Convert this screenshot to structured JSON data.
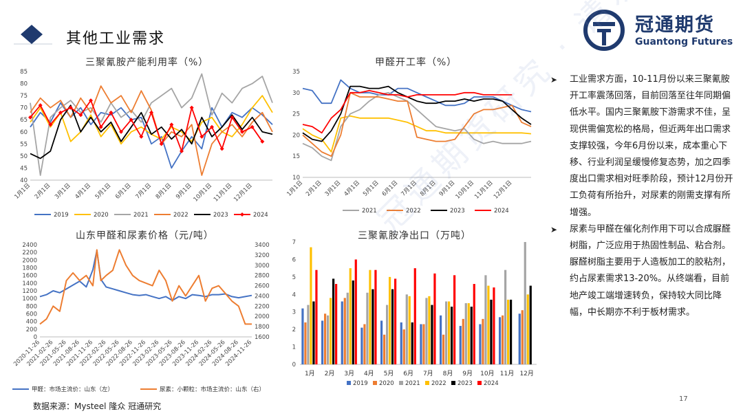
{
  "header": {
    "title": "其他工业需求",
    "logo_cn": "冠通期货",
    "logo_en": "Guantong Futures"
  },
  "colors": {
    "s2019": "#4472c4",
    "s2020": "#ffc000",
    "s2021": "#a5a5a5",
    "s2022": "#ed7d31",
    "s2023": "#000000",
    "s2024": "#ff0000",
    "logo": "#1f3a6e",
    "diamond": "#1f3a6e"
  },
  "watermark": "冠通期货研究 · 请勿",
  "text_block": {
    "p1": "工业需求方面，10-11月份以来三聚氰胺开工率震荡回落，目前回落至往年同期偏低水平。国内三聚氰胺下游需求不佳，呈现供需偏宽松的格局，但近两年出口需求支撑较强，今年6月份以来，成本重心下移、行业利润呈缓慢修复态势，加之四季度出口需求相对旺季阶段，预计12月份开工负荷有所抬升，对尿素的刚需支撑有所增强。",
    "p2": "尿素与甲醛在催化剂作用下可以合成脲醛树脂，广泛应用于热固性制品、粘合剂。脲醛树脂主要用于人造板加工的胶粘剂，约占尿素需求13-20%。从终端看，目前地产竣工端增速转负，保持较大同比降幅，中长期亦不利于板材需求。"
  },
  "footer": {
    "source": "数据来源：Mysteel 隆众 冠通研究",
    "page": "17"
  },
  "chart_data": [
    {
      "type": "line",
      "title": "三聚氰胺产能利用率（%）",
      "x_ticks": [
        "1月1日",
        "2月1日",
        "3月1日",
        "4月1日",
        "5月1日",
        "6月1日",
        "7月1日",
        "8月1日",
        "9月1日",
        "10月1日",
        "11月1日",
        "12月1日"
      ],
      "x_range": [
        0,
        12
      ],
      "ylim": [
        40,
        85
      ],
      "yticks": [
        40,
        45,
        50,
        55,
        60,
        65,
        70,
        75,
        80,
        85
      ],
      "series": [
        {
          "name": "2019",
          "color": "#4472c4",
          "x": [
            0,
            0.5,
            1,
            1.5,
            2,
            2.5,
            3,
            3.5,
            4,
            4.5,
            5,
            5.5,
            6,
            6.5,
            7,
            7.5,
            8,
            8.5,
            9,
            9.5,
            10,
            10.5,
            11,
            11.5,
            12
          ],
          "values": [
            62,
            68,
            64,
            72,
            66,
            70,
            63,
            68,
            67,
            70,
            65,
            66,
            55,
            58,
            45,
            52,
            58,
            53,
            70,
            62,
            68,
            66,
            70,
            67,
            63
          ]
        },
        {
          "name": "2020",
          "color": "#ffc000",
          "x": [
            0,
            0.5,
            1,
            1.5,
            2,
            2.5,
            3,
            3.5,
            4,
            4.5,
            5,
            5.5,
            6,
            6.5,
            7,
            7.5,
            8,
            8.5,
            9,
            9.5,
            10,
            10.5,
            11,
            11.5,
            12
          ],
          "values": [
            64,
            70,
            62,
            68,
            56,
            60,
            67,
            58,
            63,
            55,
            60,
            62,
            59,
            57,
            62,
            60,
            56,
            64,
            66,
            60,
            58,
            63,
            70,
            75,
            68
          ]
        },
        {
          "name": "2021",
          "color": "#a5a5a5",
          "x": [
            0,
            0.5,
            1,
            1.5,
            2,
            2.5,
            3,
            3.5,
            4,
            4.5,
            5,
            5.5,
            6,
            6.5,
            7,
            7.5,
            8,
            8.5,
            9,
            9.5,
            10,
            10.5,
            11,
            11.5,
            12
          ],
          "values": [
            72,
            42,
            66,
            70,
            73,
            68,
            70,
            64,
            72,
            66,
            69,
            64,
            72,
            75,
            78,
            70,
            74,
            84,
            67,
            76,
            72,
            78,
            80,
            83,
            72
          ]
        },
        {
          "name": "2022",
          "color": "#ed7d31",
          "x": [
            0,
            0.5,
            1,
            1.5,
            2,
            2.5,
            3,
            3.5,
            4,
            4.5,
            5,
            5.5,
            6,
            6.5,
            7,
            7.5,
            8,
            8.5,
            9,
            9.5,
            10,
            10.5,
            11,
            11.5,
            12
          ],
          "values": [
            68,
            74,
            70,
            73,
            66,
            74,
            68,
            79,
            72,
            75,
            68,
            77,
            69,
            55,
            60,
            58,
            63,
            42,
            55,
            60,
            63,
            58,
            64,
            68,
            60
          ]
        },
        {
          "name": "2023",
          "color": "#000000",
          "x": [
            0,
            0.5,
            1,
            1.5,
            2,
            2.5,
            3,
            3.5,
            4,
            4.5,
            5,
            5.5,
            6,
            6.5,
            7,
            7.5,
            8,
            8.5,
            9,
            9.5,
            10,
            10.5,
            11,
            11.5,
            12
          ],
          "values": [
            51,
            49,
            52,
            65,
            71,
            60,
            66,
            60,
            64,
            56,
            62,
            68,
            59,
            62,
            57,
            61,
            55,
            66,
            58,
            62,
            67,
            61,
            66,
            60,
            59
          ]
        },
        {
          "name": "2024",
          "color": "#ff0000",
          "marker": true,
          "x": [
            0,
            0.5,
            1,
            1.5,
            2,
            2.5,
            3,
            3.5,
            4,
            4.5,
            5,
            5.5,
            6,
            6.5,
            7,
            7.5,
            8,
            8.5,
            9,
            9.5,
            10,
            10.5,
            11,
            11.5
          ],
          "values": [
            66,
            71,
            63,
            68,
            70,
            67,
            73,
            62,
            68,
            60,
            65,
            58,
            68,
            55,
            63,
            52,
            70,
            58,
            62,
            53,
            66,
            60,
            62,
            56
          ]
        }
      ]
    },
    {
      "type": "line",
      "title": "甲醛开工率（%）",
      "x_ticks": [
        "1月1日",
        "2月1日",
        "3月1日",
        "4月1日",
        "5月1日",
        "6月1日",
        "7月1日",
        "8月1日",
        "9月1日",
        "10月1日",
        "11月1日",
        "12月1日"
      ],
      "x_range": [
        0,
        12
      ],
      "ylim": [
        10,
        35
      ],
      "yticks": [
        10,
        15,
        20,
        25,
        30,
        35
      ],
      "series": [
        {
          "name": "2019",
          "color": "#4472c4",
          "x": [
            0,
            0.5,
            1,
            1.5,
            2,
            2.5,
            3,
            3.5,
            4,
            4.5,
            5,
            5.5,
            6,
            6.5,
            7,
            7.5,
            8,
            8.5,
            9,
            9.5,
            10,
            10.5,
            11,
            11.5,
            12
          ],
          "values": [
            31,
            30.5,
            27.5,
            27.5,
            33,
            31,
            30,
            30,
            29.5,
            29.5,
            31,
            31,
            30,
            29,
            28,
            27,
            27,
            27.5,
            29,
            29,
            29,
            28,
            27,
            26,
            25.5
          ]
        },
        {
          "name": "2020",
          "color": "#ffc000",
          "x": [
            0,
            0.5,
            1,
            1.5,
            2,
            2.5,
            3,
            3.5,
            4,
            4.5,
            5,
            5.5,
            6,
            6.5,
            7,
            7.5,
            8,
            8.5,
            9,
            9.5,
            10,
            10.5,
            11,
            11.5,
            12
          ],
          "values": [
            21.5,
            20,
            19,
            16,
            24,
            24.5,
            24,
            24,
            24,
            24,
            23.5,
            23,
            22,
            21,
            21,
            20.5,
            20.5,
            20.5,
            20.5,
            20.5,
            20.5,
            20.5,
            20.5,
            20.5,
            20.3
          ]
        },
        {
          "name": "2021",
          "color": "#a5a5a5",
          "x": [
            0,
            0.5,
            1,
            1.5,
            2,
            2.5,
            3,
            3.5,
            4,
            4.5,
            5,
            5.5,
            6,
            6.5,
            7,
            7.5,
            8,
            8.5,
            9,
            9.5,
            10,
            10.5,
            11,
            11.5,
            12
          ],
          "values": [
            18,
            17,
            15,
            14,
            22,
            25,
            26,
            28,
            29.5,
            30,
            29,
            28,
            26,
            24,
            22,
            21.5,
            21,
            21.5,
            19,
            18,
            18.5,
            18,
            18,
            18,
            18.5
          ]
        },
        {
          "name": "2022",
          "color": "#ed7d31",
          "x": [
            0,
            0.5,
            1,
            1.5,
            2,
            2.5,
            3,
            3.5,
            4,
            4.5,
            5,
            5.5,
            6,
            6.5,
            7,
            7.5,
            8,
            8.5,
            9,
            9.5,
            10,
            10.5,
            11,
            11.5,
            12
          ],
          "values": [
            20,
            18,
            16,
            15,
            20,
            30,
            29,
            29,
            29,
            28.5,
            28,
            28,
            19.5,
            19,
            18.5,
            18.5,
            19,
            22,
            25,
            26,
            26,
            26.5,
            27,
            23,
            22
          ]
        },
        {
          "name": "2023",
          "color": "#000000",
          "x": [
            0,
            0.5,
            1,
            1.5,
            2,
            2.5,
            3,
            3.5,
            4,
            4.5,
            5,
            5.5,
            6,
            6.5,
            7,
            7.5,
            8,
            8.5,
            9,
            9.5,
            10,
            10.5,
            11,
            11.5,
            12
          ],
          "values": [
            20.5,
            19,
            18.5,
            21,
            25,
            31.5,
            31.5,
            31,
            31,
            31.5,
            30,
            29,
            28,
            27.5,
            27.5,
            28,
            28,
            28.5,
            28,
            28.5,
            28.5,
            28,
            26,
            24,
            22.5
          ]
        },
        {
          "name": "2024",
          "color": "#ff0000",
          "x": [
            0,
            0.5,
            1,
            1.5,
            2,
            2.5,
            3,
            3.5,
            4,
            4.5,
            5,
            5.5,
            6,
            6.5,
            7,
            7.5,
            8,
            8.5,
            9,
            9.5,
            10,
            10.5,
            11
          ],
          "values": [
            22.5,
            22,
            20.5,
            24,
            26,
            30,
            30,
            30.5,
            30,
            29.5,
            29.5,
            29,
            29.5,
            29.5,
            29.5,
            29.5,
            29.5,
            30,
            30,
            29.5,
            29.5,
            29.5,
            29.5
          ]
        }
      ]
    },
    {
      "type": "line",
      "title": "山东甲醛和尿素价格（元/吨）",
      "x_ticks": [
        "2020-11-26",
        "2021-02-26",
        "2021-05-26",
        "2021-08-26",
        "2021-11-26",
        "2022-02-26",
        "2022-05-26",
        "2022-08-26",
        "2022-11-26",
        "2023-02-26",
        "2023-05-26",
        "2023-08-26",
        "2023-11-26",
        "2024-02-26",
        "2024-05-26",
        "2024-08-26",
        "2024-11-26"
      ],
      "x_range": [
        0,
        16
      ],
      "ylim_left": [
        0,
        2400
      ],
      "yticks_left": [
        0,
        200,
        400,
        600,
        800,
        1000,
        1200,
        1400,
        1600,
        1800,
        2000,
        2200,
        2400
      ],
      "ylim_right": [
        1600,
        3400
      ],
      "yticks_right": [
        1600,
        1800,
        2000,
        2200,
        2400,
        2600,
        2800,
        3000,
        3200,
        3400
      ],
      "series": [
        {
          "name": "甲醛：市场主流价：山东（左）",
          "color": "#4472c4",
          "axis": "left",
          "x": [
            0,
            0.5,
            1,
            1.5,
            2,
            2.5,
            3,
            3.5,
            4,
            4.3,
            4.6,
            5,
            5.5,
            6,
            6.5,
            7,
            7.5,
            8,
            8.5,
            9,
            9.5,
            10,
            10.5,
            11,
            11.5,
            12,
            12.5,
            13,
            13.5,
            14,
            14.5,
            15,
            15.5,
            16
          ],
          "values": [
            1050,
            1100,
            1200,
            1150,
            1250,
            1350,
            1450,
            1300,
            1750,
            2250,
            1500,
            1300,
            1250,
            1200,
            1150,
            1100,
            1080,
            1100,
            1050,
            1000,
            1050,
            950,
            1050,
            1000,
            1100,
            1080,
            1050,
            1100,
            1100,
            1120,
            1050,
            1020,
            1050,
            1080
          ]
        },
        {
          "name": "尿素：小颗粒：市场主流价：山东（右）",
          "color": "#ed7d31",
          "axis": "right",
          "x": [
            0,
            0.5,
            1,
            1.5,
            2,
            2.5,
            3,
            3.5,
            4,
            4.3,
            4.6,
            5,
            5.5,
            6,
            6.5,
            7,
            7.5,
            8,
            8.5,
            9,
            9.5,
            10,
            10.5,
            11,
            11.5,
            12,
            12.5,
            13,
            13.5,
            14,
            14.5,
            15,
            15.5,
            16
          ],
          "values": [
            1850,
            1950,
            2200,
            2100,
            2700,
            2850,
            2700,
            2800,
            2600,
            3300,
            2700,
            2800,
            2900,
            3300,
            3000,
            2800,
            2700,
            2650,
            2600,
            2900,
            2700,
            2300,
            2600,
            2400,
            2600,
            2800,
            2300,
            2550,
            2600,
            2450,
            2300,
            2200,
            1850,
            1850
          ]
        }
      ]
    },
    {
      "type": "bar",
      "title": "三聚氰胺净出口（万吨）",
      "categories": [
        "1月",
        "2月",
        "3月",
        "4月",
        "5月",
        "6月",
        "7月",
        "8月",
        "9月",
        "10月",
        "11月",
        "12月"
      ],
      "ylim": [
        0,
        7
      ],
      "yticks": [
        0,
        1,
        2,
        3,
        4,
        5,
        6,
        7
      ],
      "series": [
        {
          "name": "2019",
          "color": "#4472c4",
          "values": [
            3.2,
            2.5,
            3.6,
            2.1,
            2.5,
            2.4,
            2.3,
            2.8,
            2.2,
            2.3,
            2.7,
            2.9
          ]
        },
        {
          "name": "2020",
          "color": "#ed7d31",
          "values": [
            2.4,
            2.9,
            3.8,
            2.3,
            1.7,
            2.0,
            2.3,
            1.7,
            2.6,
            2.6,
            2.8,
            3.1
          ]
        },
        {
          "name": "2021",
          "color": "#a5a5a5",
          "values": [
            3.4,
            2.8,
            4.1,
            4.1,
            3.4,
            4.0,
            3.8,
            3.6,
            3.5,
            5.1,
            5.4,
            7.0
          ]
        },
        {
          "name": "2022",
          "color": "#ffc000",
          "values": [
            6.7,
            3.8,
            5.5,
            5.4,
            5.0,
            3.9,
            3.9,
            3.6,
            3.5,
            4.5,
            3.7,
            4.0
          ]
        },
        {
          "name": "2023",
          "color": "#000000",
          "values": [
            3.6,
            4.9,
            4.8,
            4.3,
            4.3,
            2.4,
            3.4,
            3.3,
            3.3,
            3.7,
            3.7,
            4.5
          ]
        },
        {
          "name": "2024",
          "color": "#ff0000",
          "values": [
            5.4,
            4.6,
            6.0,
            5.4,
            4.9,
            5.5,
            5.2,
            5.1,
            4.6,
            4.4,
            null,
            null
          ]
        }
      ]
    }
  ]
}
